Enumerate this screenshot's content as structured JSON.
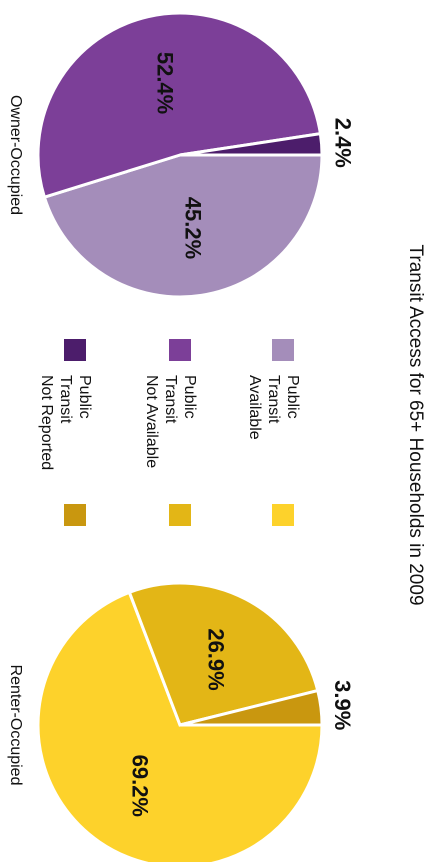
{
  "chart_data": {
    "type": "pie",
    "title": "Transit Access for 65+ Households in 2009",
    "categories": [
      "Public\nTransit\nAvailable",
      "Public\nTransit\nNot Available",
      "Public\nTransit\nNot Reported"
    ],
    "series": [
      {
        "name": "Owner-Occupied",
        "colors": [
          "#a48dba",
          "#7c3f98",
          "#4c1d6b"
        ],
        "values": [
          45.2,
          52.4,
          2.4
        ],
        "value_labels": [
          "45.2%",
          "52.4%",
          "2.4%"
        ]
      },
      {
        "name": "Renter-Occupied",
        "colors": [
          "#fdd22b",
          "#e3b616",
          "#c9970f"
        ],
        "values": [
          69.2,
          26.9,
          3.9
        ],
        "value_labels": [
          "69.2%",
          "26.9%",
          "3.9%"
        ]
      }
    ]
  }
}
